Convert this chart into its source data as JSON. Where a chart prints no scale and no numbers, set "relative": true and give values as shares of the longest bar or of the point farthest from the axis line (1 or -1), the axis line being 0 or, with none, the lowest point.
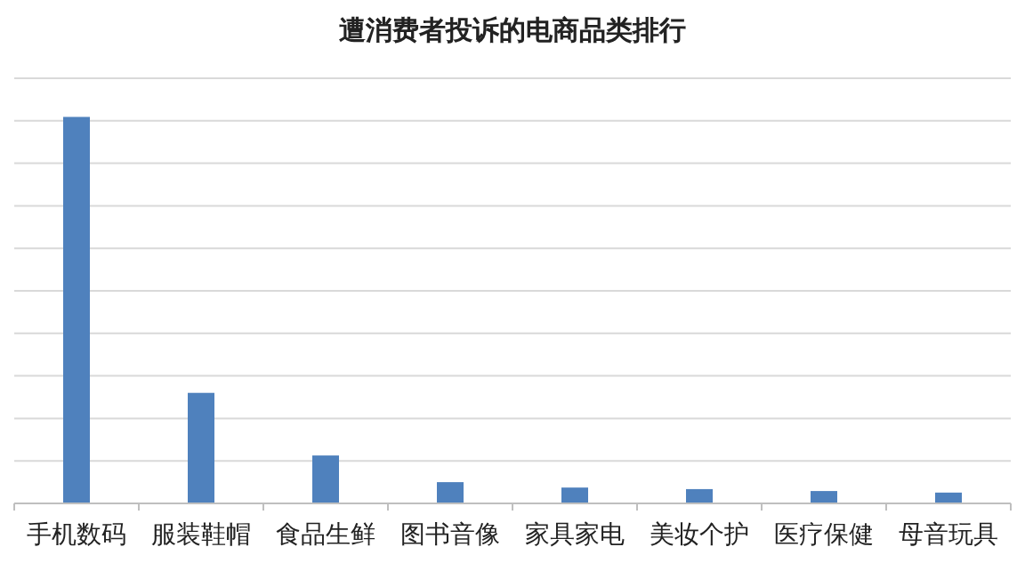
{
  "chart_data": {
    "type": "bar",
    "title": "遭消费者投诉的电商品类排行",
    "relative": true,
    "grid": "y",
    "color": "#4f81bd",
    "categories": [
      "手机数码",
      "服装鞋帽",
      "食品生鲜",
      "图书音像",
      "家具家电",
      "美妆个护",
      "医疗保健",
      "母音玩具"
    ],
    "values": [
      1,
      0.286,
      0.124,
      0.055,
      0.041,
      0.037,
      0.032,
      0.028
    ]
  }
}
